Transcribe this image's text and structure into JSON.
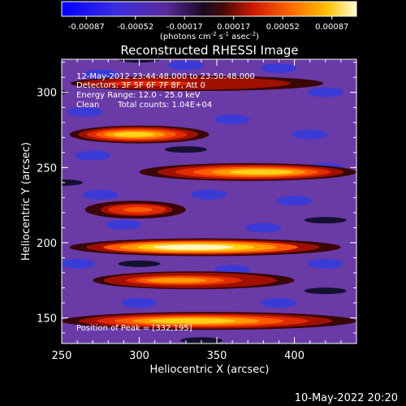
{
  "colorbar": {
    "ticks": [
      "-0.00087",
      "-0.00052",
      "-0.00017",
      "0.00017",
      "0.00052",
      "0.00087"
    ],
    "units_prefix": "(photons cm",
    "units_exp1": "-2",
    "units_mid": " s",
    "units_exp2": "-1",
    "units_mid2": " asec",
    "units_exp3": "-2",
    "units_suffix": ")"
  },
  "chart_data": {
    "type": "heatmap",
    "title": "Reconstructed RHESSI Image",
    "xlabel": "Heliocentric X (arcsec)",
    "ylabel": "Heliocentric Y (arcsec)",
    "xlim": [
      250,
      440
    ],
    "ylim": [
      133,
      322
    ],
    "x_ticks": [
      250,
      300,
      350,
      400
    ],
    "y_ticks": [
      150,
      200,
      250,
      300
    ],
    "colorscale_range": [
      -0.00087,
      0.00087
    ],
    "peak_position": [
      332,
      195
    ],
    "bands": [
      {
        "y_center": 148,
        "x_start": 250,
        "x_end": 440,
        "peak_x": 330,
        "peak_value": 0.0008
      },
      {
        "y_center": 175,
        "x_start": 270,
        "x_end": 400,
        "peak_x": 320,
        "peak_value": 0.0006
      },
      {
        "y_center": 197,
        "x_start": 255,
        "x_end": 430,
        "peak_x": 332,
        "peak_value": 0.00087
      },
      {
        "y_center": 222,
        "x_start": 265,
        "x_end": 330,
        "peak_x": 300,
        "peak_value": 0.00045
      },
      {
        "y_center": 247,
        "x_start": 300,
        "x_end": 440,
        "peak_x": 382,
        "peak_value": 0.00075
      },
      {
        "y_center": 272,
        "x_start": 255,
        "x_end": 345,
        "peak_x": 295,
        "peak_value": 0.0007
      },
      {
        "y_center": 306,
        "x_start": 250,
        "x_end": 440,
        "peak_x": 290,
        "peak_value": 0.00035
      }
    ]
  },
  "info": {
    "line1": "12-May-2012 23:44:48.000 to 23:50:48.000",
    "line2": "Detectors: 3F 5F 6F 7F 8F, Att 0",
    "line3": "Energy Range: 12.0 - 25.0 keV",
    "line4_a": "Clean",
    "line4_b": "Total counts: 1.04E+04",
    "peak": "Position of Peak = [332,195]"
  },
  "footer_date": "10-May-2022 20:20"
}
